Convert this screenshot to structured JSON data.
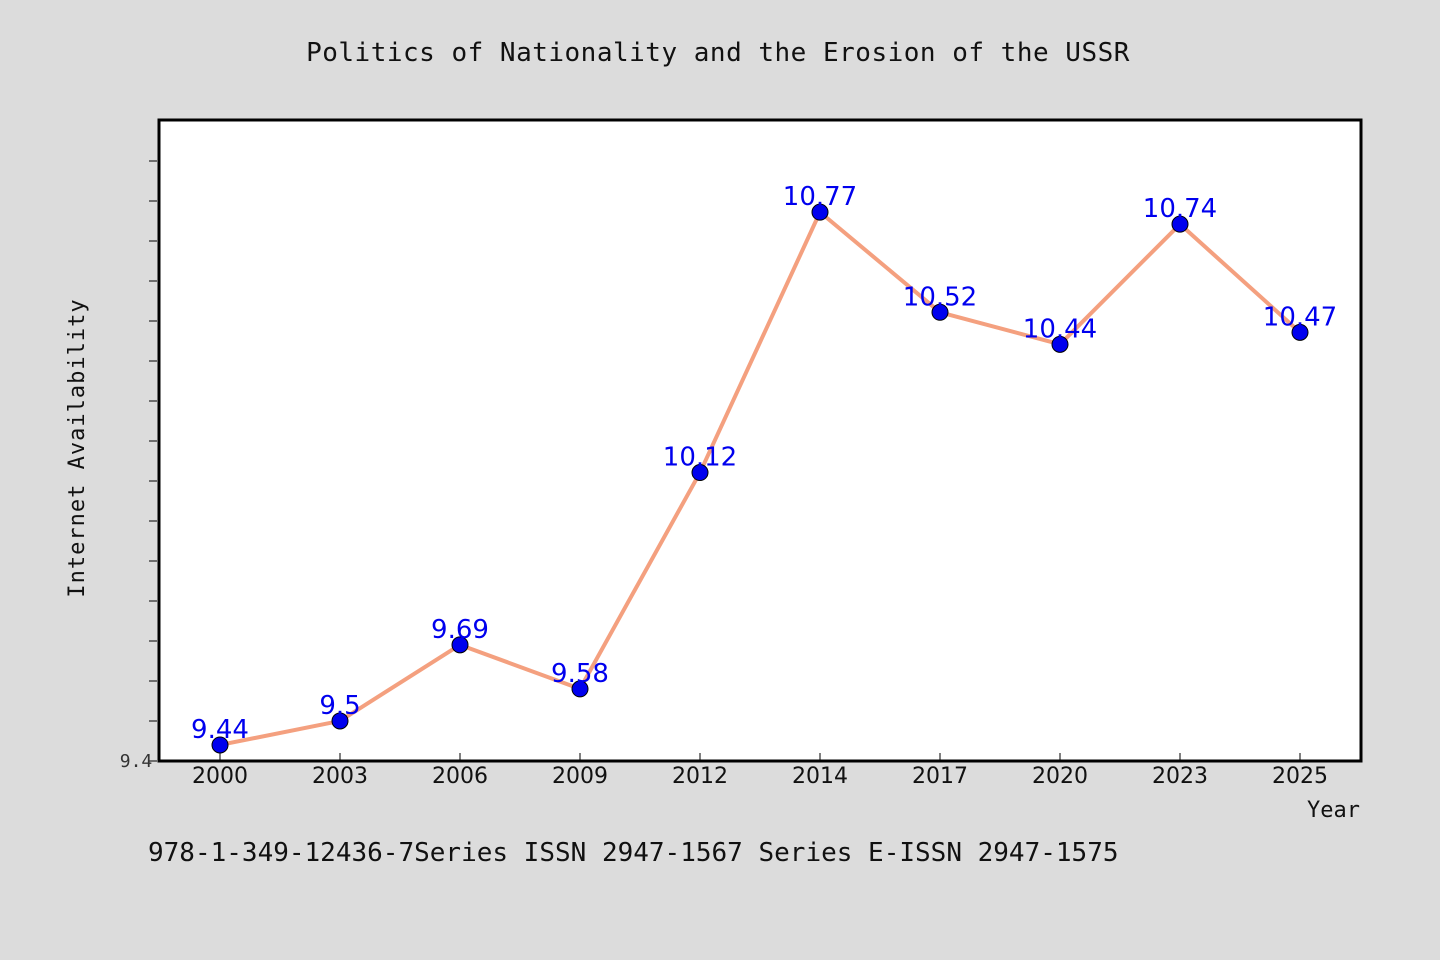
{
  "chart_data": {
    "type": "line",
    "title": "Politics of Nationality and the Erosion of the USSR",
    "xlabel": "Year",
    "ylabel": "Internet Availability",
    "categories": [
      "2000",
      "2003",
      "2006",
      "2009",
      "2012",
      "2014",
      "2017",
      "2020",
      "2023",
      "2025"
    ],
    "series": [
      {
        "values": [
          9.44,
          9.5,
          9.69,
          9.58,
          10.12,
          10.77,
          10.52,
          10.44,
          10.74,
          10.47
        ],
        "labels": [
          "9.44",
          "9.5",
          "9.69",
          "9.58",
          "10.12",
          "10.77",
          "10.52",
          "10.44",
          "10.74",
          "10.47"
        ],
        "line_color": "#f4a07f",
        "marker_color": "#0000ee",
        "label_color": "#0000ee"
      }
    ],
    "y_tick_labels": [
      "9.4"
    ],
    "ylim": [
      9.4,
      11.0
    ],
    "grid": false,
    "footer": "978-1-349-12436-7Series ISSN 2947-1567 Series E-ISSN 2947-1575"
  }
}
